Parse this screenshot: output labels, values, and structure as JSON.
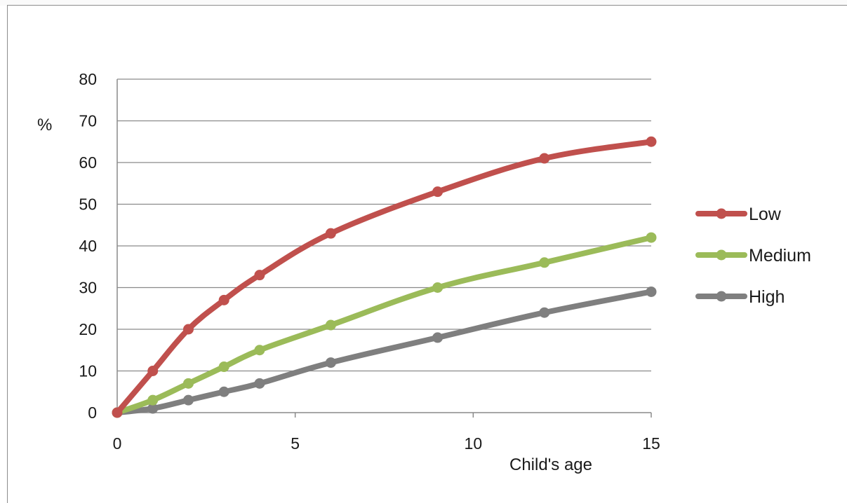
{
  "chart_data": {
    "type": "line",
    "title": "",
    "xlabel": "Child's age",
    "ylabel": "%",
    "xlim": [
      0,
      15
    ],
    "ylim": [
      0,
      80
    ],
    "x_ticks": [
      0,
      5,
      10,
      15
    ],
    "y_ticks": [
      0,
      10,
      20,
      30,
      40,
      50,
      60,
      70,
      80
    ],
    "grid": "horizontal",
    "legend_position": "right",
    "x": [
      0,
      1,
      2,
      3,
      4,
      6,
      9,
      12,
      15
    ],
    "series": [
      {
        "name": "Low",
        "color": "#c0504d",
        "marker_fill": "#c0504d",
        "values": [
          0,
          10,
          20,
          27,
          33,
          43,
          53,
          61,
          65
        ]
      },
      {
        "name": "Medium",
        "color": "#9bbb59",
        "marker_fill": "#9bbb59",
        "values": [
          0,
          3,
          7,
          11,
          15,
          21,
          30,
          36,
          42
        ]
      },
      {
        "name": "High",
        "color": "#7f7f7f",
        "marker_fill": "#7f7f7f",
        "values": [
          0,
          1,
          3,
          5,
          7,
          12,
          18,
          24,
          29
        ]
      }
    ]
  }
}
